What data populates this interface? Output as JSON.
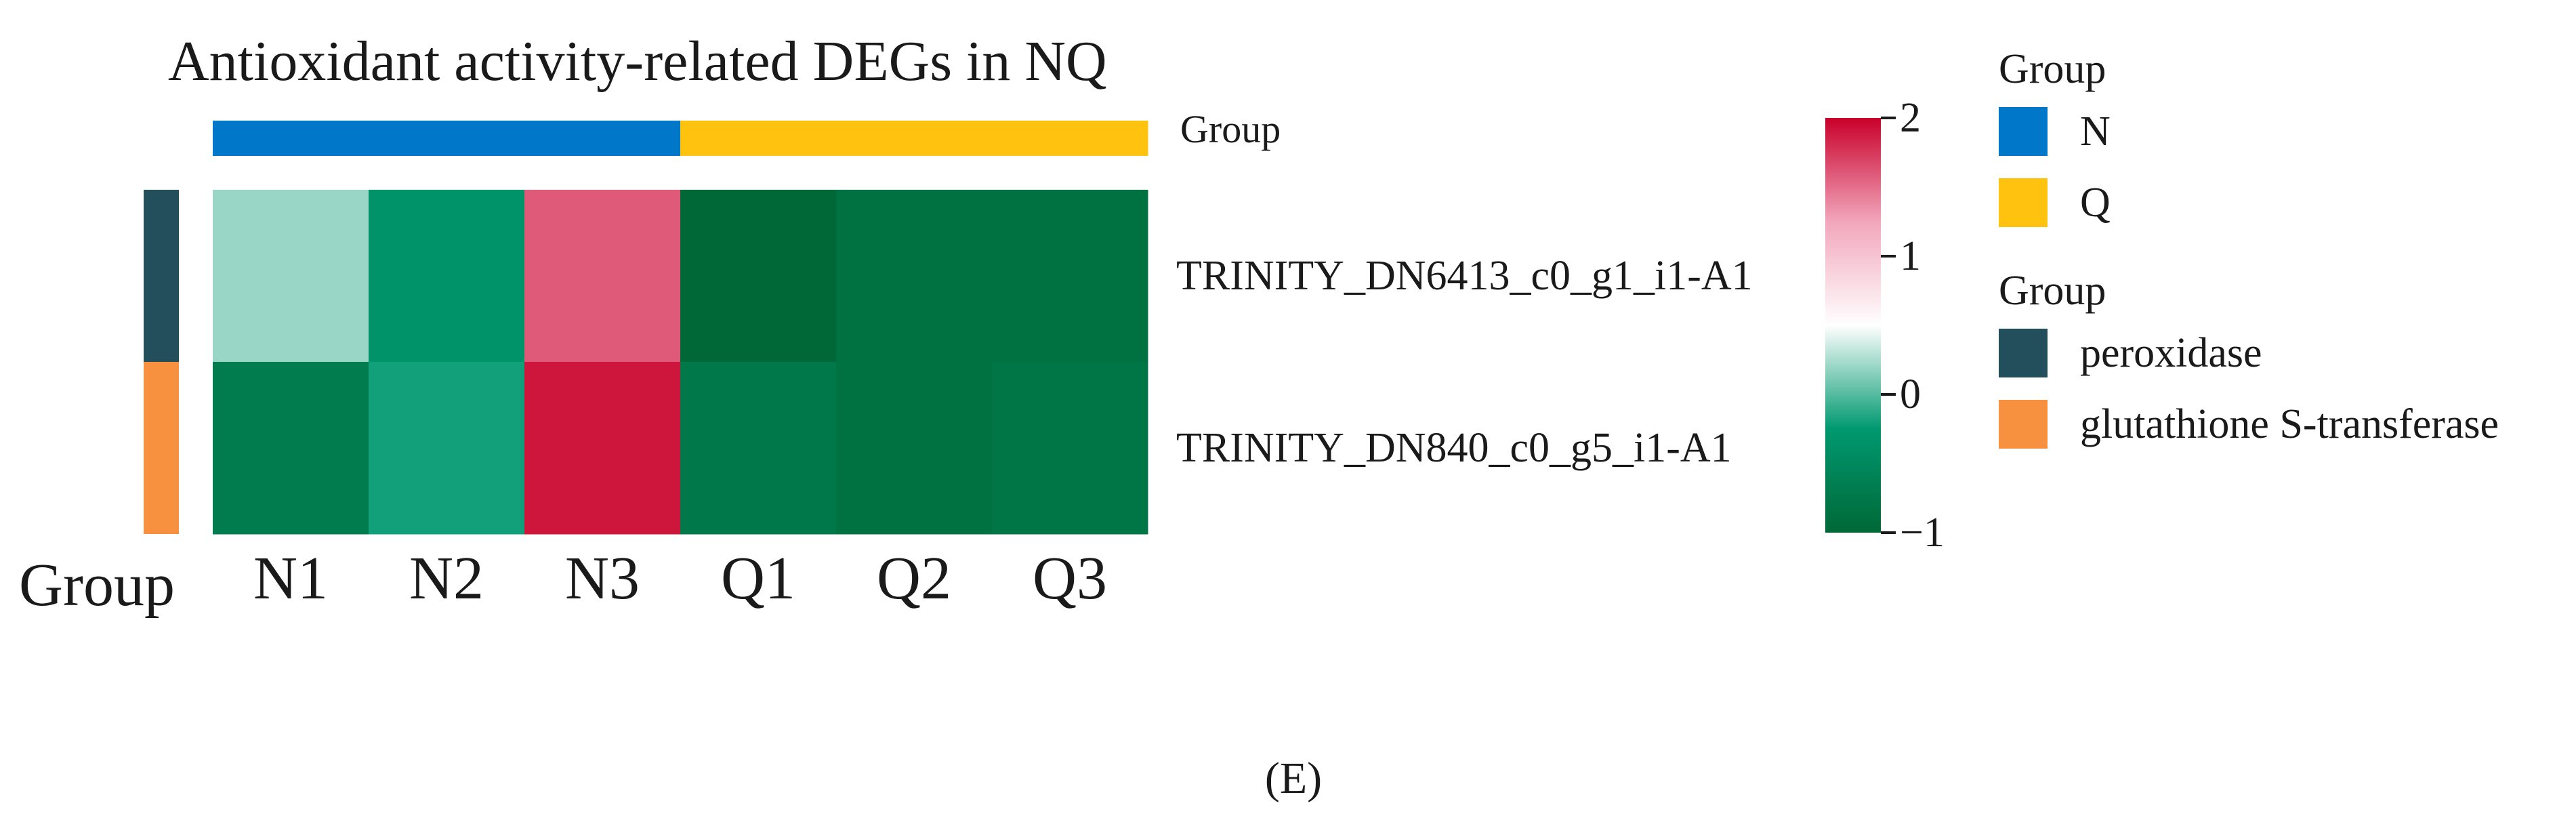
{
  "chart_data": {
    "type": "heatmap",
    "title": "Antioxidant activity-related DEGs in NQ",
    "columns": [
      "N1",
      "N2",
      "N3",
      "Q1",
      "Q2",
      "Q3"
    ],
    "column_groups": [
      "N",
      "N",
      "N",
      "Q",
      "Q",
      "Q"
    ],
    "rows": [
      {
        "label": "TRINITY_DN6413_c0_g1_i1-A1",
        "group": "peroxidase",
        "values": [
          0.2,
          -0.35,
          1.6,
          -1.0,
          -0.85,
          -0.85
        ]
      },
      {
        "label": "TRINITY_DN840_c0_g5_i1-A1",
        "group": "glutathione S-transferase",
        "values": [
          -0.7,
          -0.2,
          1.9,
          -0.75,
          -0.85,
          -0.8
        ]
      }
    ],
    "top_annotation_label": "Group",
    "left_annotation_label": "Group",
    "colorbar": {
      "min": -1,
      "max": 2,
      "ticks": [
        "2",
        "1",
        "0",
        "−1"
      ],
      "colors": [
        "#006837",
        "#009970",
        "#ffffff",
        "#f2a6bc",
        "#c9002a"
      ]
    },
    "legends": [
      {
        "title": "Group",
        "items": [
          {
            "label": "N",
            "color": "#0077c8"
          },
          {
            "label": "Q",
            "color": "#ffc20e"
          }
        ]
      },
      {
        "title": "Group",
        "items": [
          {
            "label": "peroxidase",
            "color": "#234e5c"
          },
          {
            "label": "glutathione S-transferase",
            "color": "#f7913f"
          }
        ]
      }
    ]
  },
  "caption": "(E)"
}
